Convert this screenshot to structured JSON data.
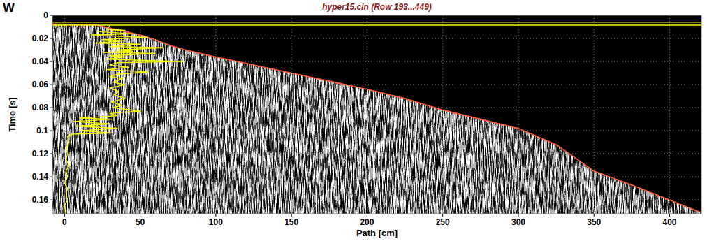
{
  "chart_data": {
    "type": "line",
    "title": "hyper15.cin (Row 193...449)",
    "annotations": [
      "W"
    ],
    "x_label": "Path [cm]",
    "y_label": "Time [s]",
    "xlim": [
      -8,
      421
    ],
    "ylim": [
      0.172,
      0
    ],
    "xticks": [
      0,
      50,
      100,
      150,
      200,
      250,
      300,
      350,
      400
    ],
    "yticks": [
      0,
      0.02,
      0.04,
      0.06,
      0.08,
      0.1,
      0.12,
      0.14,
      0.16
    ],
    "grid": true,
    "series": [
      {
        "type": "area",
        "color": "#ff5a36",
        "x": [
          -8,
          20,
          30,
          40,
          50,
          60,
          70,
          80,
          100,
          125,
          150,
          175,
          200,
          225,
          250,
          275,
          300,
          325,
          350,
          375,
          400,
          421
        ],
        "values": [
          0.0075,
          0.008,
          0.011,
          0.014,
          0.017,
          0.021,
          0.026,
          0.03,
          0.036,
          0.043,
          0.05,
          0.057,
          0.064,
          0.072,
          0.082,
          0.09,
          0.098,
          0.112,
          0.135,
          0.147,
          0.16,
          0.171
        ]
      },
      {
        "type": "line",
        "color": "#ffff00",
        "x": [
          -8,
          421
        ],
        "values": [
          0.006,
          0.006
        ]
      },
      {
        "type": "line",
        "color": "#ffff00",
        "x": [
          -8,
          421
        ],
        "values": [
          0.0085,
          0.0085
        ]
      },
      {
        "type": "line",
        "color": "#ffff00",
        "x": [
          30,
          28,
          40,
          22,
          45,
          18,
          35,
          55,
          25,
          40,
          20,
          50,
          30,
          65,
          35,
          45,
          25,
          60,
          30,
          40,
          28,
          78,
          35,
          30,
          42,
          28,
          55,
          35,
          30,
          38,
          32,
          40,
          30,
          36,
          33,
          40,
          31,
          38,
          32,
          50,
          30,
          35,
          10,
          32,
          6,
          30,
          8,
          35,
          10,
          32,
          5,
          2,
          3,
          1,
          2,
          1,
          3,
          1,
          2,
          0,
          2,
          1,
          2,
          0,
          1
        ],
        "values": [
          0.009,
          0.012,
          0.013,
          0.014,
          0.016,
          0.017,
          0.018,
          0.019,
          0.021,
          0.022,
          0.024,
          0.025,
          0.027,
          0.028,
          0.03,
          0.031,
          0.032,
          0.033,
          0.035,
          0.036,
          0.038,
          0.04,
          0.041,
          0.043,
          0.045,
          0.047,
          0.049,
          0.051,
          0.053,
          0.055,
          0.058,
          0.06,
          0.063,
          0.066,
          0.069,
          0.072,
          0.075,
          0.078,
          0.08,
          0.083,
          0.085,
          0.087,
          0.089,
          0.09,
          0.092,
          0.094,
          0.096,
          0.098,
          0.1,
          0.102,
          0.103,
          0.105,
          0.11,
          0.115,
          0.12,
          0.125,
          0.13,
          0.135,
          0.14,
          0.145,
          0.15,
          0.155,
          0.16,
          0.165,
          0.172
        ]
      }
    ]
  }
}
